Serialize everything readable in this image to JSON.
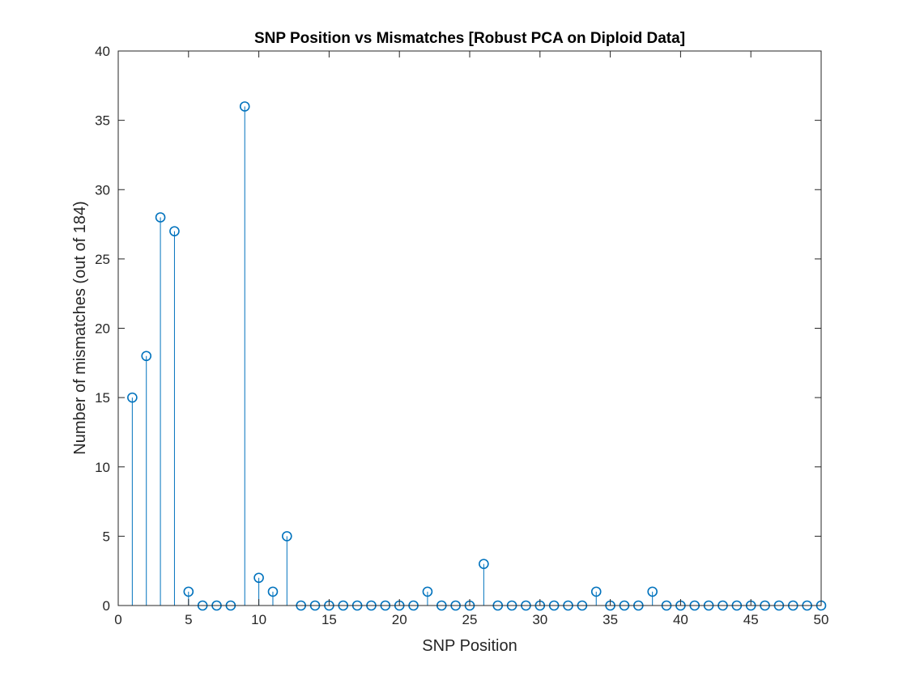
{
  "chart_data": {
    "type": "stem",
    "title": "SNP Position vs Mismatches [Robust PCA on Diploid Data]",
    "xlabel": "SNP Position",
    "ylabel": "Number of mismatches (out of 184)",
    "xlim": [
      0,
      50
    ],
    "ylim": [
      0,
      40
    ],
    "xticks": [
      0,
      5,
      10,
      15,
      20,
      25,
      30,
      35,
      40,
      45,
      50
    ],
    "yticks": [
      0,
      5,
      10,
      15,
      20,
      25,
      30,
      35,
      40
    ],
    "grid": false,
    "marker": "circle",
    "series": [
      {
        "color": "#0072BD",
        "x": [
          1,
          2,
          3,
          4,
          5,
          6,
          7,
          8,
          9,
          10,
          11,
          12,
          13,
          14,
          15,
          16,
          17,
          18,
          19,
          20,
          21,
          22,
          23,
          24,
          25,
          26,
          27,
          28,
          29,
          30,
          31,
          32,
          33,
          34,
          35,
          36,
          37,
          38,
          39,
          40,
          41,
          42,
          43,
          44,
          45,
          46,
          47,
          48,
          49,
          50
        ],
        "y": [
          15,
          18,
          28,
          27,
          1,
          0,
          0,
          0,
          36,
          2,
          1,
          5,
          0,
          0,
          0,
          0,
          0,
          0,
          0,
          0,
          0,
          1,
          0,
          0,
          0,
          3,
          0,
          0,
          0,
          0,
          0,
          0,
          0,
          1,
          0,
          0,
          0,
          1,
          0,
          0,
          0,
          0,
          0,
          0,
          0,
          0,
          0,
          0,
          0,
          0
        ]
      }
    ]
  }
}
